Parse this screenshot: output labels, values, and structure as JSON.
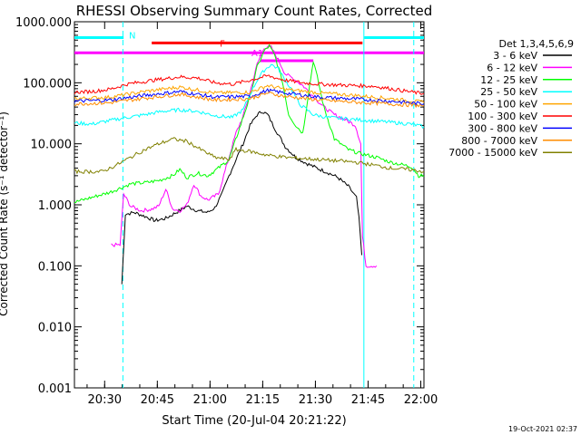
{
  "chart_data": {
    "type": "line",
    "title": "RHESSI Observing Summary Count Rates, Corrected",
    "xlabel": "Start Time (20-Jul-04 20:21:22)",
    "ylabel": "Corrected Count Rate (s⁻¹ detector⁻¹)",
    "x_unit": "minutes after 20:21:22",
    "xlim": [
      0,
      99.5
    ],
    "ylim": [
      0.001,
      1000
    ],
    "yscale": "log",
    "xtick_labels": [
      {
        "x": 8.6,
        "label": "20:30"
      },
      {
        "x": 23.6,
        "label": "20:45"
      },
      {
        "x": 38.6,
        "label": "21:00"
      },
      {
        "x": 53.6,
        "label": "21:15"
      },
      {
        "x": 68.6,
        "label": "21:30"
      },
      {
        "x": 83.6,
        "label": "21:45"
      },
      {
        "x": 98.6,
        "label": "22:00"
      }
    ],
    "ytick_labels": [
      {
        "y": 1000,
        "label": "1000.000"
      },
      {
        "y": 100,
        "label": "100.000"
      },
      {
        "y": 10,
        "label": "10.000"
      },
      {
        "y": 1,
        "label": "1.000"
      },
      {
        "y": 0.1,
        "label": "0.100"
      },
      {
        "y": 0.01,
        "label": "0.010"
      },
      {
        "y": 0.001,
        "label": "0.001"
      }
    ],
    "legend_title": "Det 1,3,4,5,6,9",
    "legend_position": "right",
    "series": [
      {
        "name": "3 - 6 keV",
        "color": "#000000",
        "x": [
          13.5,
          14.5,
          17,
          20,
          23,
          26,
          29,
          32,
          35,
          38,
          40,
          42,
          44,
          46,
          48,
          50,
          52,
          53.5,
          55,
          57,
          60,
          63,
          66,
          69,
          72,
          75,
          78,
          80.3,
          81,
          81.8
        ],
        "y": [
          0.05,
          0.7,
          0.75,
          0.65,
          0.55,
          0.6,
          0.75,
          0.95,
          0.8,
          0.75,
          0.9,
          1.5,
          3.0,
          5.5,
          10,
          20,
          30,
          34,
          30,
          18,
          9,
          6,
          4.8,
          4,
          3.4,
          2.8,
          2.0,
          1.3,
          0.6,
          0.15
        ]
      },
      {
        "name": "6 - 12 keV",
        "color": "#ff00ff",
        "x": [
          10.5,
          13,
          14,
          16,
          19,
          22,
          24,
          26,
          28,
          30,
          32,
          34,
          36,
          38,
          41,
          44,
          46,
          48,
          50,
          52,
          54,
          56,
          58,
          60,
          62,
          65,
          68,
          71,
          74,
          77,
          80,
          81.5,
          82,
          83,
          86
        ],
        "y": [
          0.22,
          0.22,
          1.5,
          0.95,
          0.8,
          0.85,
          0.95,
          1.8,
          0.85,
          0.8,
          1.0,
          2.2,
          1.4,
          1.2,
          1.5,
          6,
          15,
          28,
          70,
          200,
          380,
          380,
          240,
          140,
          120,
          90,
          60,
          40,
          30,
          25,
          20,
          10,
          0.3,
          0.1,
          0.1
        ]
      },
      {
        "name": "12 - 25 keV",
        "color": "#00ff00",
        "x": [
          0,
          10,
          16,
          20,
          24,
          28,
          30,
          32,
          35,
          38,
          41,
          44,
          47,
          50,
          52,
          54,
          55.5,
          57,
          59,
          61,
          63,
          65,
          66.5,
          68,
          69.5,
          71,
          74,
          78,
          81,
          86,
          90,
          96,
          98,
          99.5
        ],
        "y": [
          1.1,
          1.6,
          2.2,
          2.3,
          2.5,
          3.0,
          3.8,
          2.8,
          3.3,
          3.0,
          4.0,
          5.5,
          18,
          60,
          180,
          330,
          400,
          280,
          120,
          30,
          20,
          15,
          60,
          230,
          100,
          40,
          12,
          8,
          7,
          6,
          5,
          4.2,
          3,
          3
        ]
      },
      {
        "name": "25 - 50 keV",
        "color": "#00ffff",
        "x": [
          0,
          5,
          10,
          15,
          20,
          25,
          30,
          35,
          40,
          45,
          48,
          50,
          52,
          54,
          56,
          58,
          60,
          62,
          64,
          68,
          72,
          76,
          80,
          84,
          88,
          92,
          96,
          99.5
        ],
        "y": [
          22,
          21,
          24,
          27,
          30,
          34,
          36,
          34,
          29,
          27,
          36,
          65,
          110,
          160,
          200,
          170,
          110,
          75,
          45,
          30,
          27,
          26,
          25,
          24,
          23,
          22,
          21,
          19
        ]
      },
      {
        "name": "50 - 100 keV",
        "color": "#ffa500",
        "x": [
          0,
          10,
          20,
          30,
          40,
          50,
          55,
          60,
          70,
          80,
          90,
          99.5
        ],
        "y": [
          55,
          58,
          72,
          85,
          68,
          70,
          90,
          78,
          68,
          62,
          55,
          48
        ]
      },
      {
        "name": "100 - 300 keV",
        "color": "#ff0000",
        "x": [
          0,
          5,
          10,
          15,
          20,
          25,
          30,
          35,
          40,
          45,
          50,
          55,
          60,
          65,
          70,
          75,
          80,
          85,
          90,
          95,
          99.5
        ],
        "y": [
          70,
          72,
          78,
          95,
          105,
          115,
          125,
          120,
          100,
          95,
          110,
          130,
          110,
          100,
          95,
          92,
          90,
          88,
          80,
          72,
          66
        ]
      },
      {
        "name": "300 - 800 keV",
        "color": "#0000ff",
        "x": [
          0,
          10,
          20,
          30,
          40,
          50,
          55,
          60,
          70,
          80,
          90,
          99.5
        ],
        "y": [
          50,
          52,
          62,
          72,
          58,
          60,
          75,
          68,
          58,
          54,
          50,
          45
        ]
      },
      {
        "name": "800 - 7000 keV",
        "color": "#ff8c00",
        "x": [
          0,
          10,
          20,
          30,
          40,
          50,
          55,
          60,
          70,
          80,
          90,
          99.5
        ],
        "y": [
          45,
          47,
          56,
          65,
          52,
          55,
          68,
          60,
          52,
          48,
          45,
          42
        ]
      },
      {
        "name": "7000 - 15000 keV",
        "color": "#808000",
        "x": [
          0,
          8,
          12,
          16,
          20,
          24,
          28,
          32,
          36,
          40,
          44,
          46,
          50,
          55,
          60,
          70,
          80,
          85,
          90,
          95,
          99.5
        ],
        "y": [
          3.5,
          3.5,
          4.5,
          6.0,
          8.0,
          10,
          12,
          11,
          8,
          6,
          5.5,
          8,
          7.5,
          6.5,
          6.0,
          5.5,
          5.0,
          4.5,
          4.0,
          3.8,
          3.5
        ]
      }
    ],
    "state_bars": [
      {
        "label": "N",
        "color": "#00ffff",
        "x_start": 0,
        "x_end": 14,
        "y": 550
      },
      {
        "label": "",
        "color": "#00ffff",
        "x_start": 82.5,
        "x_end": 99.5,
        "y": 550
      },
      {
        "label": "F",
        "color": "#ff0000",
        "x_start": 22,
        "x_end": 82,
        "y": 450
      },
      {
        "label": "A1",
        "color": "#ff00ff",
        "x_start": 0,
        "x_end": 99.5,
        "y": 310
      },
      {
        "label": "",
        "color": "#ff00ff",
        "x_start": 53,
        "x_end": 68,
        "y": 230
      }
    ],
    "vlines": [
      {
        "x": 13.8,
        "color": "#00ffff",
        "dash": true
      },
      {
        "x": 82.4,
        "color": "#00ffff",
        "dash": false
      },
      {
        "x": 96.6,
        "color": "#00ffff",
        "dash": true
      }
    ],
    "grid": false
  },
  "footer": {
    "timestamp": "19-Oct-2021 02:37"
  }
}
